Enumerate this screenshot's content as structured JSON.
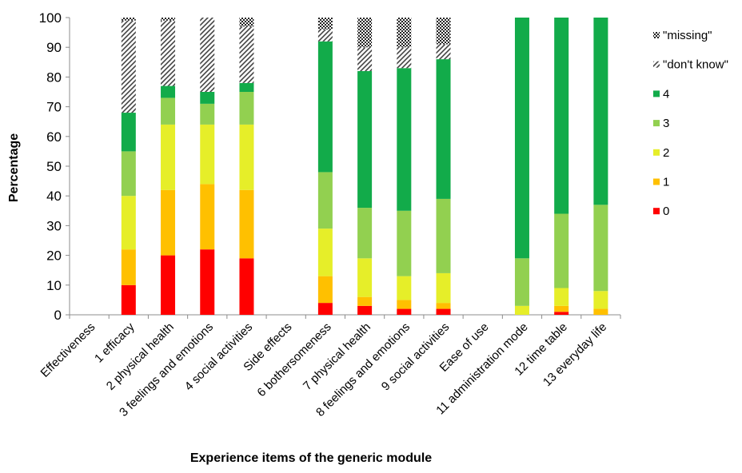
{
  "chart_data": {
    "type": "bar",
    "stacked": true,
    "xlabel": "Experience items of the generic module",
    "ylabel": "Percentage",
    "ylim": [
      0,
      100
    ],
    "yticks": [
      0,
      10,
      20,
      30,
      40,
      50,
      60,
      70,
      80,
      90,
      100
    ],
    "grid": false,
    "legend_position": "right",
    "categories": [
      "Effectiveness",
      "1 efficacy",
      "2 physical health",
      "3 feelings and emotions",
      "4 social activities",
      "Side effects",
      "6 bothersomeness",
      "7 physical health",
      "8 feelings and emotions",
      "9 social activities",
      "Ease of use",
      "11 administration mode",
      "12 time table",
      "13 everyday life"
    ],
    "series": [
      {
        "name": "0",
        "color": "#ff0000",
        "pattern": "solid",
        "values": [
          0,
          10,
          20,
          22,
          19,
          0,
          4,
          3,
          2,
          2,
          0,
          0,
          1,
          0
        ]
      },
      {
        "name": "1",
        "color": "#ffc000",
        "pattern": "solid",
        "values": [
          0,
          12,
          22,
          22,
          23,
          0,
          9,
          3,
          3,
          2,
          0,
          0,
          2,
          2
        ]
      },
      {
        "name": "2",
        "color": "#e6ee29",
        "pattern": "solid",
        "values": [
          0,
          18,
          22,
          20,
          22,
          0,
          16,
          13,
          8,
          10,
          0,
          3,
          6,
          6
        ]
      },
      {
        "name": "3",
        "color": "#92d050",
        "pattern": "solid",
        "values": [
          0,
          15,
          9,
          7,
          11,
          0,
          19,
          17,
          22,
          25,
          0,
          16,
          25,
          29
        ]
      },
      {
        "name": "4",
        "color": "#12ab4a",
        "pattern": "solid",
        "values": [
          0,
          13,
          4,
          4,
          3,
          0,
          44,
          46,
          48,
          47,
          0,
          81,
          66,
          63
        ]
      },
      {
        "name": "\"don't know\"",
        "color": "#555555",
        "pattern": "diagonal",
        "values": [
          0,
          31,
          22,
          25,
          19,
          0,
          4,
          8,
          7,
          5,
          0,
          0,
          0,
          0
        ]
      },
      {
        "name": "\"missing\"",
        "color": "#333333",
        "pattern": "checker",
        "values": [
          0,
          1,
          1,
          0,
          3,
          0,
          4,
          10,
          10,
          9,
          0,
          0,
          0,
          0
        ]
      }
    ]
  }
}
